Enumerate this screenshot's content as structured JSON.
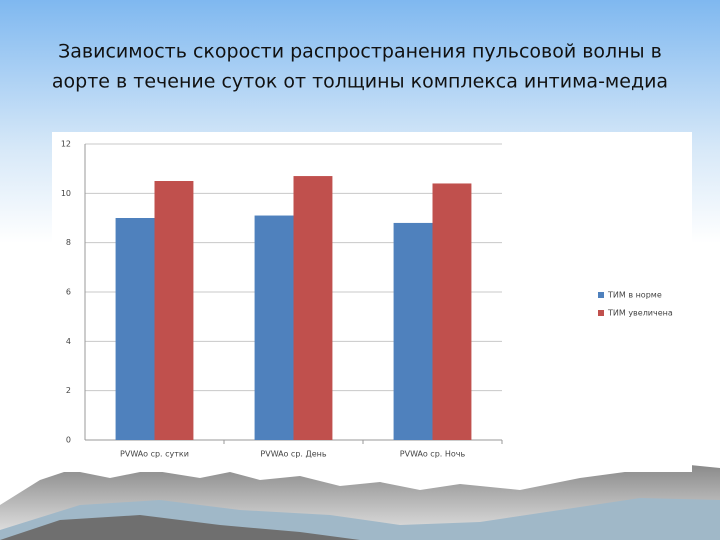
{
  "chart_data": {
    "type": "bar",
    "title": [
      "Зависимость скорости распространения пульсовой волны в",
      "аорте в течение суток  от толщины комплекса интима-медиа"
    ],
    "categories": [
      "PVWAo ср. сутки",
      "PVWAo ср. День",
      "PVWAo ср. Ночь"
    ],
    "series": [
      {
        "name": "ТИМ в норме",
        "color": "#4f81bd",
        "values": [
          9.0,
          9.1,
          8.8
        ]
      },
      {
        "name": "ТИМ увеличена",
        "color": "#c0504d",
        "values": [
          10.5,
          10.7,
          10.4
        ]
      }
    ],
    "ylim": [
      0,
      12
    ],
    "yticks": [
      0,
      2,
      4,
      6,
      8,
      10,
      12
    ],
    "grid": true,
    "legend": "right"
  }
}
